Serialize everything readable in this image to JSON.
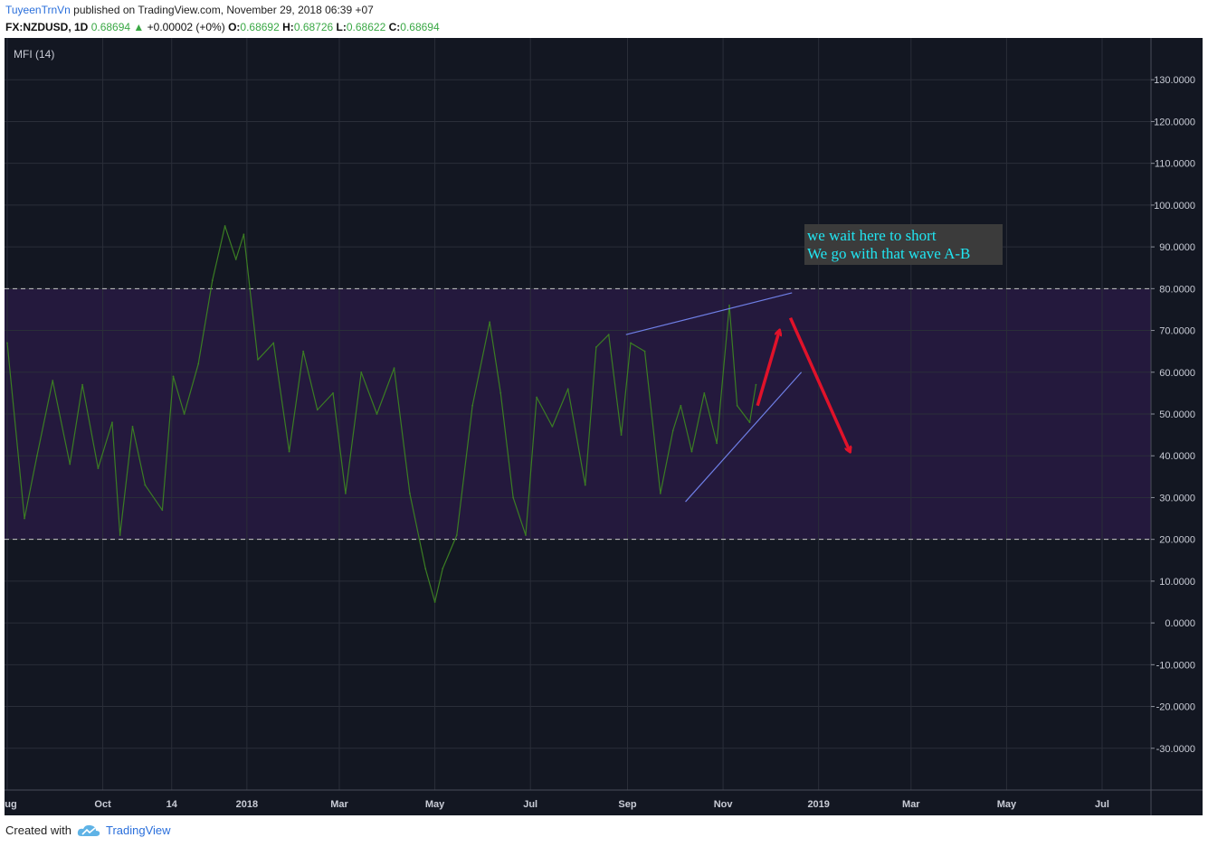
{
  "header": {
    "author": "TuyeenTrnVn",
    "published": "published on TradingView.com, November 29, 2018 06:39 +07",
    "symbol": "FX:NZDUSD, 1D",
    "last": "0.68694",
    "change_arrow": "▲",
    "change": "+0.00002 (+0%)",
    "o_label": "O:",
    "o_value": "0.68692",
    "h_label": "H:",
    "h_value": "0.68726",
    "l_label": "L:",
    "l_value": "0.68622",
    "c_label": "C:",
    "c_value": "0.68694"
  },
  "footer": {
    "created_with": "Created with",
    "brand": "TradingView",
    "logo_icon": "tradingview-cloud-icon"
  },
  "chart_data": {
    "type": "line",
    "indicator_label": "MFI (14)",
    "y_range": [
      -40,
      140
    ],
    "y_ticks": [
      130,
      120,
      110,
      100,
      90,
      80,
      70,
      60,
      50,
      40,
      30,
      20,
      10,
      0,
      -10,
      -20,
      -30
    ],
    "y_tick_labels": [
      "130.0000",
      "120.0000",
      "110.0000",
      "100.0000",
      "90.0000",
      "80.0000",
      "70.0000",
      "60.0000",
      "50.0000",
      "40.0000",
      "30.0000",
      "20.0000",
      "10.0000",
      "0.0000",
      "-10.0000",
      "-20.0000",
      "-30.0000"
    ],
    "x_ticks": [
      {
        "label": "Aug",
        "date": "2017-08-01"
      },
      {
        "label": "Oct",
        "date": "2017-10-01"
      },
      {
        "label": "14",
        "date": "2017-11-14"
      },
      {
        "label": "2018",
        "date": "2018-01-01"
      },
      {
        "label": "Mar",
        "date": "2018-03-01"
      },
      {
        "label": "May",
        "date": "2018-05-01"
      },
      {
        "label": "Jul",
        "date": "2018-07-01"
      },
      {
        "label": "Sep",
        "date": "2018-09-01"
      },
      {
        "label": "Nov",
        "date": "2018-11-01"
      },
      {
        "label": "2019",
        "date": "2019-01-01"
      },
      {
        "label": "Mar",
        "date": "2019-03-01"
      },
      {
        "label": "May",
        "date": "2019-05-01"
      },
      {
        "label": "Jul",
        "date": "2019-07-01"
      }
    ],
    "grid": true,
    "overbought": 80,
    "oversold": 20,
    "band_color": "#24193d",
    "line_color": "#3b7d23",
    "trendline_color": "#6f7fe6",
    "arrow_color": "#e0122a",
    "series": [
      {
        "x": [
          "2017-08-01",
          "2017-08-12",
          "2017-08-20",
          "2017-08-30",
          "2017-09-10",
          "2017-09-18",
          "2017-09-28",
          "2017-10-07",
          "2017-10-12",
          "2017-10-20",
          "2017-10-28",
          "2017-11-08",
          "2017-11-15",
          "2017-11-22",
          "2017-12-01",
          "2017-12-10",
          "2017-12-18",
          "2017-12-25",
          "2017-12-30",
          "2018-01-08",
          "2018-01-18",
          "2018-01-28",
          "2018-02-06",
          "2018-02-15",
          "2018-02-25",
          "2018-03-05",
          "2018-03-15",
          "2018-03-25",
          "2018-04-05",
          "2018-04-15",
          "2018-04-25",
          "2018-05-01",
          "2018-05-06",
          "2018-05-15",
          "2018-05-25",
          "2018-06-05",
          "2018-06-12",
          "2018-06-20",
          "2018-06-28",
          "2018-07-05",
          "2018-07-15",
          "2018-07-25",
          "2018-08-05",
          "2018-08-12",
          "2018-08-20",
          "2018-08-28",
          "2018-09-03",
          "2018-09-12",
          "2018-09-22",
          "2018-09-30",
          "2018-10-05",
          "2018-10-12",
          "2018-10-20",
          "2018-10-28",
          "2018-11-05",
          "2018-11-10",
          "2018-11-18",
          "2018-11-22"
        ],
        "values": [
          67,
          25,
          40,
          58,
          38,
          57,
          37,
          48,
          21,
          47,
          33,
          27,
          59,
          50,
          62,
          82,
          95,
          87,
          93,
          63,
          67,
          41,
          65,
          51,
          55,
          31,
          60,
          50,
          61,
          31,
          13,
          5,
          13,
          21,
          52,
          72,
          55,
          30,
          21,
          54,
          47,
          56,
          33,
          66,
          69,
          45,
          67,
          65,
          31,
          46,
          52,
          41,
          55,
          43,
          76,
          52,
          48,
          57
        ]
      }
    ],
    "annotations": [
      {
        "type": "text",
        "lines": [
          "we wait here to short",
          "We go with that wave A-B"
        ],
        "text_color": "#21e6f2",
        "box_color": "#3b3b3b"
      },
      {
        "type": "trendline",
        "from": {
          "date": "2018-08-31",
          "value": 69
        },
        "to": {
          "date": "2018-12-15",
          "value": 79
        }
      },
      {
        "type": "trendline",
        "from": {
          "date": "2018-10-08",
          "value": 29
        },
        "to": {
          "date": "2018-12-21",
          "value": 60
        }
      },
      {
        "type": "arrow",
        "from": {
          "date": "2018-11-23",
          "value": 52
        },
        "to": {
          "date": "2018-12-07",
          "value": 70
        }
      },
      {
        "type": "arrow",
        "from": {
          "date": "2018-12-14",
          "value": 73
        },
        "to": {
          "date": "2019-01-21",
          "value": 41
        }
      }
    ]
  }
}
